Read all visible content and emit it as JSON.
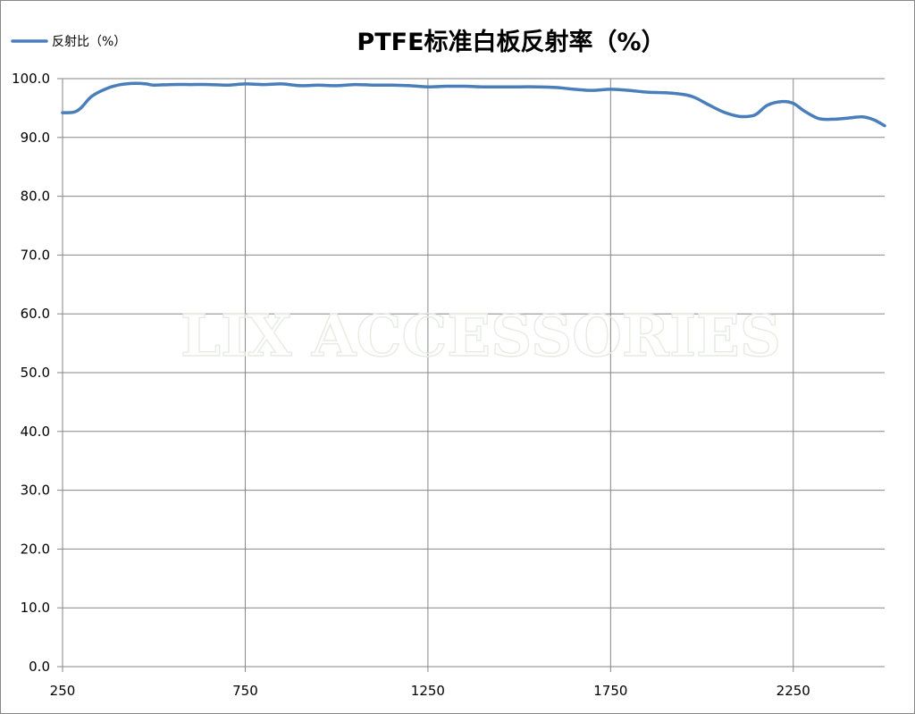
{
  "chart_data": {
    "type": "line",
    "title": "PTFE标准白板反射率（%）",
    "xlabel": "",
    "ylabel": "",
    "xlim": [
      250,
      2500
    ],
    "ylim": [
      0,
      100
    ],
    "x_ticks": [
      250,
      750,
      1250,
      1750,
      2250
    ],
    "x_tick_labels": [
      "250",
      "750",
      "1250",
      "1750",
      "2250"
    ],
    "y_ticks": [
      0,
      10,
      20,
      30,
      40,
      50,
      60,
      70,
      80,
      90,
      100
    ],
    "y_tick_labels": [
      "0.0",
      "10.0",
      "20.0",
      "30.0",
      "40.0",
      "50.0",
      "60.0",
      "70.0",
      "80.0",
      "90.0",
      "100.0"
    ],
    "grid": true,
    "legend_position": "top-left",
    "series": [
      {
        "name": "反射比（%）",
        "color": "#4a7ebb",
        "x": [
          250,
          280,
          300,
          330,
          370,
          410,
          450,
          480,
          500,
          550,
          600,
          650,
          700,
          750,
          800,
          850,
          900,
          950,
          1000,
          1050,
          1100,
          1150,
          1200,
          1250,
          1300,
          1350,
          1400,
          1450,
          1500,
          1550,
          1600,
          1650,
          1700,
          1750,
          1800,
          1850,
          1900,
          1950,
          1980,
          2020,
          2060,
          2100,
          2130,
          2150,
          2180,
          2220,
          2250,
          2280,
          2320,
          2360,
          2400,
          2440,
          2470,
          2500
        ],
        "y": [
          94.2,
          94.3,
          95.0,
          97.0,
          98.3,
          99.0,
          99.2,
          99.1,
          98.9,
          99.0,
          99.0,
          99.0,
          98.9,
          99.1,
          99.0,
          99.1,
          98.8,
          98.9,
          98.8,
          99.0,
          98.9,
          98.9,
          98.8,
          98.6,
          98.7,
          98.7,
          98.6,
          98.6,
          98.6,
          98.6,
          98.5,
          98.2,
          98.0,
          98.2,
          98.0,
          97.7,
          97.6,
          97.3,
          96.8,
          95.5,
          94.3,
          93.6,
          93.6,
          94.0,
          95.5,
          96.1,
          95.8,
          94.5,
          93.2,
          93.1,
          93.3,
          93.5,
          93.0,
          92.0
        ]
      }
    ]
  },
  "watermark": "LIX ACCESSORIES"
}
